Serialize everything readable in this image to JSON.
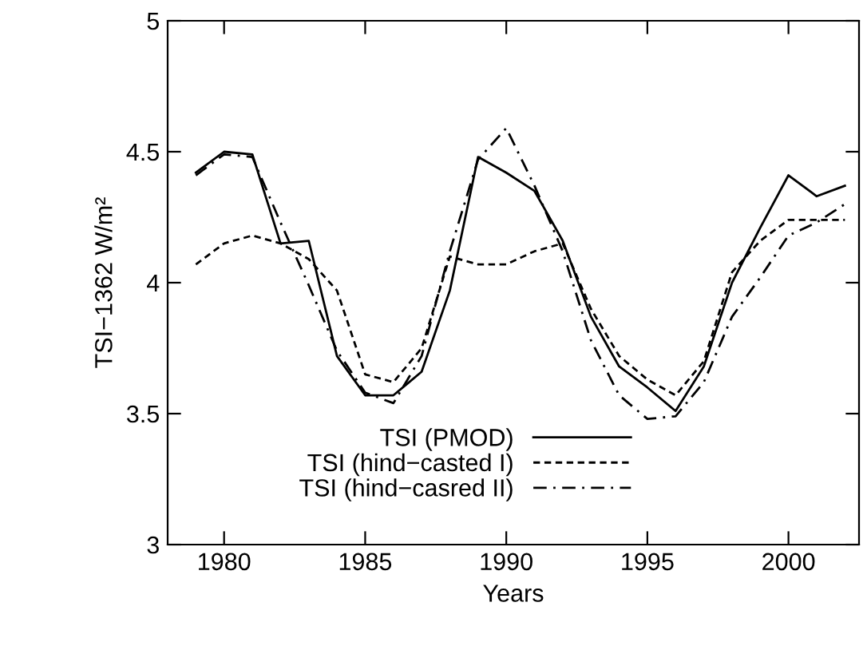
{
  "chart_data": {
    "type": "line",
    "xlabel": "Years",
    "ylabel": "TSI−1362 W/m²",
    "x": [
      1979,
      1980,
      1981,
      1982,
      1983,
      1984,
      1985,
      1986,
      1987,
      1988,
      1989,
      1990,
      1991,
      1992,
      1993,
      1994,
      1995,
      1996,
      1997,
      1998,
      1999,
      2000,
      2001,
      2002
    ],
    "series": [
      {
        "name": "TSI (PMOD)",
        "color": "#000000",
        "line_style": "solid",
        "values": [
          4.42,
          4.5,
          4.49,
          4.15,
          4.16,
          3.72,
          3.57,
          3.57,
          3.66,
          3.97,
          4.48,
          4.42,
          4.35,
          4.16,
          3.87,
          3.68,
          3.6,
          3.51,
          3.68,
          4.0,
          4.21,
          4.41,
          4.33,
          4.37
        ]
      },
      {
        "name": "TSI (hind−casted I)",
        "color": "#000000",
        "line_style": "dashed",
        "values": [
          4.07,
          4.15,
          4.18,
          4.15,
          4.09,
          3.97,
          3.65,
          3.62,
          3.75,
          4.1,
          4.07,
          4.07,
          4.12,
          4.15,
          3.9,
          3.72,
          3.63,
          3.57,
          3.7,
          4.04,
          4.16,
          4.24,
          4.24,
          4.24
        ]
      },
      {
        "name": "TSI (hind−casred II)",
        "color": "#000000",
        "line_style": "dashdot",
        "values": [
          4.41,
          4.49,
          4.48,
          4.23,
          3.99,
          3.74,
          3.58,
          3.54,
          3.72,
          4.12,
          4.47,
          4.59,
          4.37,
          4.12,
          3.78,
          3.57,
          3.48,
          3.49,
          3.62,
          3.87,
          4.02,
          4.18,
          4.23,
          4.3
        ]
      }
    ],
    "xlim": [
      1978,
      2002.5
    ],
    "xticks": [
      1980,
      1985,
      1990,
      1995,
      2000
    ],
    "ylim": [
      3,
      5
    ],
    "yticks": [
      3,
      3.5,
      4,
      4.5,
      5
    ],
    "grid": false,
    "legend": "bottom",
    "marker": "none"
  }
}
